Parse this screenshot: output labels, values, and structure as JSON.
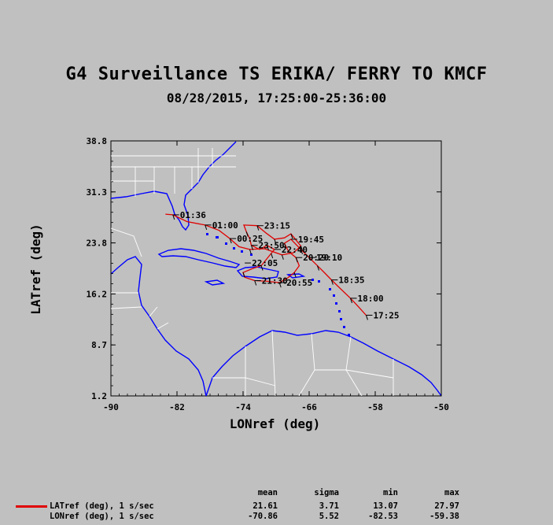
{
  "title": "G4 Surveillance TS ERIKA/ FERRY TO KMCF",
  "subtitle": "08/28/2015, 17:25:00-25:36:00",
  "chart_data": {
    "type": "line",
    "xlabel": "LONref (deg)",
    "ylabel": "LATref (deg)",
    "xlim": [
      -90,
      -50
    ],
    "ylim": [
      1.2,
      38.8
    ],
    "xticks": [
      "-90",
      "-82",
      "-74",
      "-66",
      "-58",
      "-50"
    ],
    "yticks": [
      "1.2",
      "8.7",
      "16.2",
      "23.8",
      "31.3",
      "38.8"
    ],
    "grid": false,
    "background_map": "coastlines and political boundaries (blue coast, white borders)",
    "series": [
      {
        "name": "LATref (deg), 1 s/sec",
        "color": "#e00000",
        "points": [
          [
            -59.1,
            13.1
          ],
          [
            -60.0,
            14.3
          ],
          [
            -61.0,
            15.6
          ],
          [
            -62.2,
            17.0
          ],
          [
            -63.3,
            18.3
          ],
          [
            -64.1,
            19.3
          ],
          [
            -65.0,
            20.4
          ],
          [
            -66.0,
            21.6
          ],
          [
            -67.0,
            22.8
          ],
          [
            -68.2,
            24.3
          ],
          [
            -69.0,
            23.7
          ],
          [
            -68.5,
            22.5
          ],
          [
            -67.6,
            21.6
          ],
          [
            -67.2,
            20.4
          ],
          [
            -67.8,
            19.4
          ],
          [
            -68.6,
            18.6
          ],
          [
            -69.6,
            17.9
          ],
          [
            -71.0,
            18.1
          ],
          [
            -72.6,
            18.2
          ],
          [
            -73.8,
            18.7
          ],
          [
            -74.0,
            19.4
          ],
          [
            -72.8,
            20.0
          ],
          [
            -71.8,
            20.4
          ],
          [
            -71.4,
            21.0
          ],
          [
            -70.6,
            22.2
          ],
          [
            -70.2,
            22.8
          ],
          [
            -71.1,
            23.4
          ],
          [
            -72.0,
            22.8
          ],
          [
            -73.0,
            23.4
          ],
          [
            -73.2,
            24.4
          ],
          [
            -73.6,
            25.4
          ],
          [
            -73.9,
            26.4
          ],
          [
            -72.3,
            26.3
          ],
          [
            -71.2,
            25.2
          ],
          [
            -70.2,
            24.3
          ],
          [
            -69.0,
            24.5
          ],
          [
            -68.2,
            25.1
          ],
          [
            -67.6,
            24.2
          ],
          [
            -67.0,
            23.3
          ],
          [
            -67.9,
            22.3
          ],
          [
            -69.3,
            22.0
          ],
          [
            -71.4,
            22.9
          ],
          [
            -73.2,
            22.8
          ],
          [
            -74.5,
            23.2
          ],
          [
            -75.6,
            24.4
          ],
          [
            -76.9,
            25.6
          ],
          [
            -78.6,
            26.4
          ],
          [
            -80.8,
            26.9
          ],
          [
            -82.5,
            27.9
          ],
          [
            -83.4,
            28.0
          ]
        ]
      }
    ],
    "time_labels": [
      {
        "label": "17:25",
        "lon": -59.1,
        "lat": 13.1
      },
      {
        "label": "18:00",
        "lon": -61.0,
        "lat": 15.6
      },
      {
        "label": "18:35",
        "lon": -63.3,
        "lat": 18.3
      },
      {
        "label": "19:10",
        "lon": -66.0,
        "lat": 21.6
      },
      {
        "label": "19:45",
        "lon": -68.2,
        "lat": 24.3
      },
      {
        "label": "20:20",
        "lon": -67.6,
        "lat": 21.6
      },
      {
        "label": "20:55",
        "lon": -69.6,
        "lat": 17.9
      },
      {
        "label": "21:30",
        "lon": -72.6,
        "lat": 18.2
      },
      {
        "label": "22:05",
        "lon": -73.8,
        "lat": 20.8
      },
      {
        "label": "22:40",
        "lon": -70.2,
        "lat": 22.8
      },
      {
        "label": "23:15",
        "lon": -72.3,
        "lat": 26.3
      },
      {
        "label": "23:50",
        "lon": -73.0,
        "lat": 23.4
      },
      {
        "label": "00:25",
        "lon": -75.6,
        "lat": 24.4
      },
      {
        "label": "01:00",
        "lon": -78.6,
        "lat": 26.4
      },
      {
        "label": "01:36",
        "lon": -82.5,
        "lat": 27.9
      }
    ]
  },
  "stats": {
    "headers": [
      "mean",
      "sigma",
      "min",
      "max"
    ],
    "rows": [
      {
        "name": "LATref (deg), 1 s/sec",
        "mean": "21.61",
        "sigma": "3.71",
        "min": "13.07",
        "max": "27.97"
      },
      {
        "name": "LONref (deg), 1 s/sec",
        "mean": "-70.86",
        "sigma": "5.52",
        "min": "-82.53",
        "max": "-59.38"
      }
    ]
  }
}
